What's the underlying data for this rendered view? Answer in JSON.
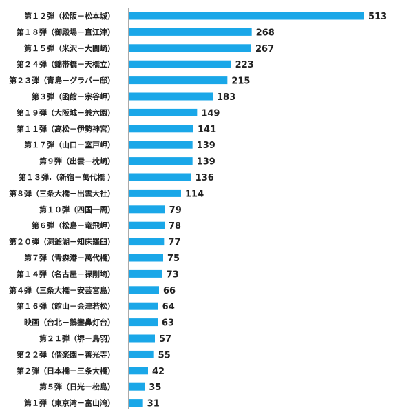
{
  "chart_data": {
    "type": "bar",
    "orientation": "horizontal",
    "title": "",
    "xlabel": "",
    "ylabel": "",
    "bar_color": "#1aa7e8",
    "axis_color": "#555555",
    "xlim": [
      0,
      540
    ],
    "grid": false,
    "categories": [
      "第１２弾（松阪－松本城）",
      "第１８弾（御殿場－直江津）",
      "第１５弾（米沢－大間崎）",
      "第２４弾（錦帯橋－天橋立）",
      "第２３弾（青島－グラバー邸）",
      "第３弾（函館－宗谷岬）",
      "第１９弾（大阪城－兼六園）",
      "第１１弾（高松－伊勢神宮）",
      "第１７弾（山口－室戸岬）",
      "第９弾（出雲－枕崎）",
      "第１３弾.（新宿－萬代橋 ）",
      "第８弾（三条大橋－出雲大社）",
      "第１０弾（四国一周）",
      "第６弾（松島－竜飛岬）",
      "第２０弾（洞爺湖－知床羅臼）",
      "第７弾（青森港－萬代橋）",
      "第１４弾（名古屋－禄剛埼）",
      "第４弾（三条大橋－安芸宮島）",
      "第１６弾（館山－会津若松）",
      "映画（台北－鵝鑾鼻灯台）",
      "第２１弾（堺－鳥羽）",
      "第２２弾（偕楽園－善光寺）",
      "第２弾（日本橋－三条大橋）",
      "第５弾（日光－松島）",
      "第１弾（東京湾－富山湾）"
    ],
    "values": [
      513,
      268,
      267,
      223,
      215,
      183,
      149,
      141,
      139,
      139,
      136,
      114,
      79,
      78,
      77,
      75,
      73,
      66,
      64,
      63,
      57,
      55,
      42,
      35,
      31
    ]
  }
}
